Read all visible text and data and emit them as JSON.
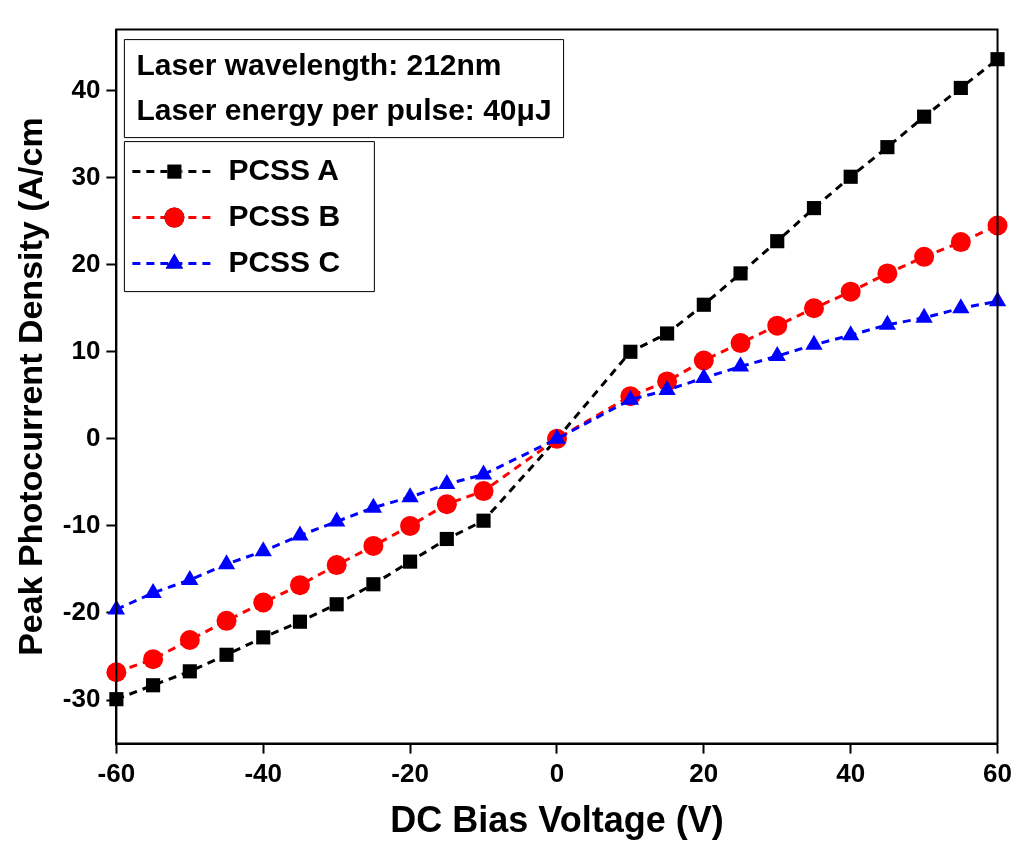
{
  "chart_data": {
    "type": "line",
    "xlabel": "DC Bias Voltage (V)",
    "ylabel": "Peak Photocurrent Density (A/cm",
    "x": [
      -60,
      -55,
      -50,
      -45,
      -40,
      -35,
      -30,
      -25,
      -20,
      -15,
      -10,
      0,
      10,
      15,
      20,
      25,
      30,
      35,
      40,
      45,
      50,
      55,
      60
    ],
    "xlim": [
      -60,
      60
    ],
    "xticks": [
      -60,
      -40,
      -20,
      0,
      20,
      40,
      60
    ],
    "ylim": [
      -35,
      47
    ],
    "yticks": [
      -30,
      -20,
      -10,
      0,
      10,
      20,
      30,
      40
    ],
    "grid": false,
    "legend": "top left",
    "line_style": "dashed",
    "annotations": [
      "Laser wavelength: 212nm",
      "Laser energy per pulse: 40μJ"
    ],
    "series": [
      {
        "name": "PCSS A",
        "color": "#000000",
        "marker": "square",
        "values": [
          -29.9,
          -28.3,
          -26.7,
          -24.8,
          -22.8,
          -21.0,
          -19.0,
          -16.7,
          -14.1,
          -11.5,
          -9.4,
          0,
          10.0,
          12.1,
          15.4,
          19.0,
          22.7,
          26.5,
          30.1,
          33.5,
          37.0,
          40.3,
          43.6
        ]
      },
      {
        "name": "PCSS B",
        "color": "#ff0000",
        "marker": "circle",
        "values": [
          -26.8,
          -25.3,
          -23.1,
          -20.9,
          -18.8,
          -16.8,
          -14.5,
          -12.3,
          -10.0,
          -7.5,
          -6.0,
          0,
          4.9,
          6.6,
          9.0,
          11.0,
          13.0,
          15.0,
          16.9,
          19.0,
          20.9,
          22.6,
          24.5
        ]
      },
      {
        "name": "PCSS C",
        "color": "#0000ff",
        "marker": "triangle",
        "values": [
          -19.6,
          -17.7,
          -16.2,
          -14.4,
          -12.9,
          -11.1,
          -9.5,
          -7.9,
          -6.7,
          -5.2,
          -4.1,
          0,
          4.5,
          5.6,
          7.0,
          8.3,
          9.5,
          10.8,
          11.9,
          13.1,
          13.9,
          15.0,
          15.8
        ]
      }
    ]
  }
}
